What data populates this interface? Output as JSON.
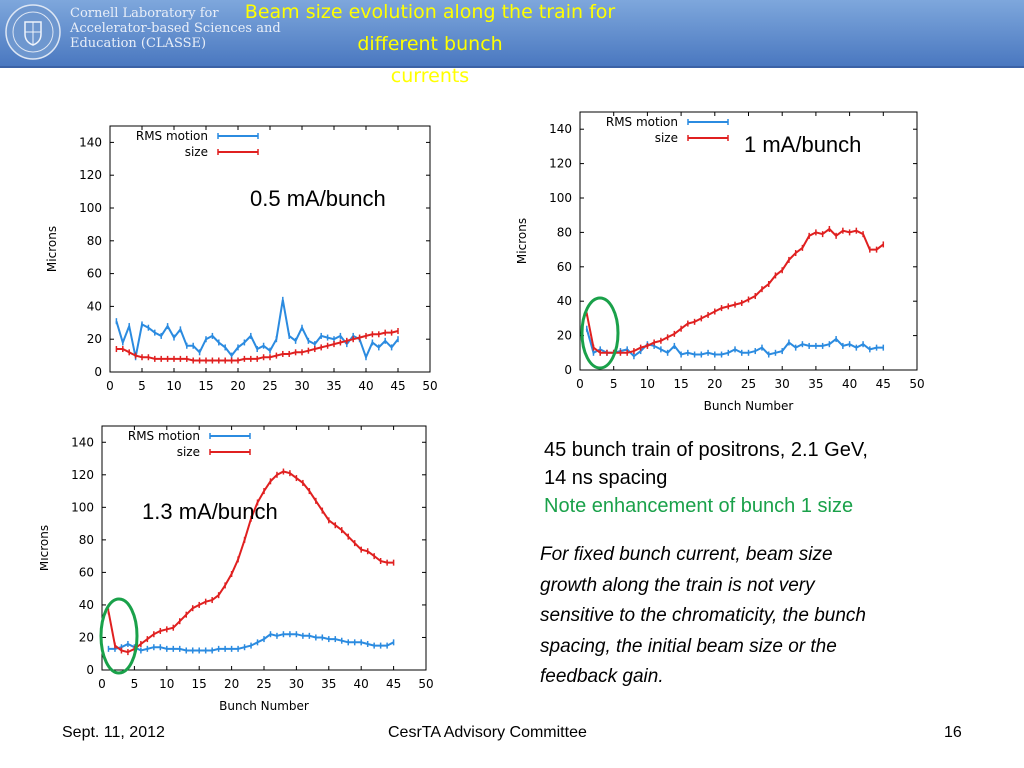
{
  "header": {
    "lab_name_lines": [
      "Cornell Laboratory for",
      "Accelerator-based Sciences and",
      "Education (CLASSE)"
    ],
    "title_lines": [
      "Beam size evolution along the train for different bunch",
      "currents"
    ],
    "bg_color": "#5b87cc",
    "title_color": "#ffff00"
  },
  "chart_data": [
    {
      "type": "line",
      "xlabel": "",
      "ylabel": "Microns",
      "xlim": [
        0,
        50
      ],
      "ylim": [
        0,
        150
      ],
      "xticks": [
        "0",
        "5",
        "10",
        "15",
        "20",
        "25",
        "30",
        "35",
        "40",
        "45",
        "50"
      ],
      "yticks": [
        "0",
        "20",
        "40",
        "60",
        "80",
        "100",
        "120",
        "140"
      ],
      "grid": false,
      "legend_position": "top-left",
      "series": [
        {
          "name": "RMS motion",
          "color": "#2b8be0",
          "x": [
            1,
            2,
            3,
            4,
            5,
            6,
            7,
            8,
            9,
            10,
            11,
            12,
            13,
            14,
            15,
            16,
            17,
            18,
            19,
            20,
            21,
            22,
            23,
            24,
            25,
            26,
            27,
            28,
            29,
            30,
            31,
            32,
            33,
            34,
            35,
            36,
            37,
            38,
            39,
            40,
            41,
            42,
            43,
            44,
            45
          ],
          "y": [
            31,
            18,
            28,
            9,
            29,
            27,
            24,
            22,
            28,
            21,
            26,
            16,
            16,
            12,
            20,
            22,
            18,
            15,
            10,
            15,
            18,
            22,
            14,
            16,
            13,
            20,
            44,
            22,
            19,
            27,
            19,
            17,
            22,
            21,
            20,
            22,
            17,
            22,
            20,
            9,
            18,
            15,
            19,
            15,
            20
          ]
        },
        {
          "name": "size",
          "color": "#e02020",
          "x": [
            1,
            2,
            3,
            4,
            5,
            6,
            7,
            8,
            9,
            10,
            11,
            12,
            13,
            14,
            15,
            16,
            17,
            18,
            19,
            20,
            21,
            22,
            23,
            24,
            25,
            26,
            27,
            28,
            29,
            30,
            31,
            32,
            33,
            34,
            35,
            36,
            37,
            38,
            39,
            40,
            41,
            42,
            43,
            44,
            45
          ],
          "y": [
            14,
            14,
            12,
            10,
            9,
            9,
            8,
            8,
            8,
            8,
            8,
            8,
            7,
            7,
            7,
            7,
            7,
            7,
            7,
            7,
            8,
            8,
            8,
            9,
            9,
            10,
            11,
            11,
            12,
            12,
            13,
            14,
            15,
            16,
            17,
            18,
            19,
            20,
            21,
            22,
            23,
            23,
            24,
            24,
            25
          ]
        }
      ]
    },
    {
      "type": "line",
      "xlabel": "Bunch Number",
      "ylabel": "Microns",
      "xlim": [
        0,
        50
      ],
      "ylim": [
        0,
        150
      ],
      "xticks": [
        "0",
        "5",
        "10",
        "15",
        "20",
        "25",
        "30",
        "35",
        "40",
        "45",
        "50"
      ],
      "yticks": [
        "0",
        "20",
        "40",
        "60",
        "80",
        "100",
        "120",
        "140"
      ],
      "grid": false,
      "legend_position": "top-left",
      "series": [
        {
          "name": "RMS motion",
          "color": "#2b8be0",
          "x": [
            1,
            2,
            3,
            4,
            5,
            6,
            7,
            8,
            9,
            10,
            11,
            12,
            13,
            14,
            15,
            16,
            17,
            18,
            19,
            20,
            21,
            22,
            23,
            24,
            25,
            26,
            27,
            28,
            29,
            30,
            31,
            32,
            33,
            34,
            35,
            36,
            37,
            38,
            39,
            40,
            41,
            42,
            43,
            44,
            45
          ],
          "y": [
            24,
            10,
            12,
            10,
            10,
            11,
            12,
            8,
            11,
            15,
            14,
            12,
            10,
            14,
            9,
            10,
            9,
            9,
            10,
            9,
            9,
            10,
            12,
            10,
            10,
            11,
            13,
            9,
            10,
            11,
            16,
            13,
            15,
            14,
            14,
            14,
            15,
            18,
            14,
            15,
            13,
            15,
            12,
            13,
            13
          ]
        },
        {
          "name": "size",
          "color": "#e02020",
          "x": [
            1,
            2,
            3,
            4,
            5,
            6,
            7,
            8,
            9,
            10,
            11,
            12,
            13,
            14,
            15,
            16,
            17,
            18,
            19,
            20,
            21,
            22,
            23,
            24,
            25,
            26,
            27,
            28,
            29,
            30,
            31,
            32,
            33,
            34,
            35,
            36,
            37,
            38,
            39,
            40,
            41,
            42,
            43,
            44,
            45
          ],
          "y": [
            33,
            13,
            10,
            10,
            10,
            10,
            10,
            11,
            13,
            14,
            16,
            17,
            19,
            21,
            24,
            27,
            28,
            30,
            32,
            34,
            36,
            37,
            38,
            39,
            41,
            43,
            47,
            50,
            55,
            58,
            64,
            68,
            71,
            78,
            80,
            79,
            82,
            78,
            81,
            80,
            81,
            79,
            70,
            70,
            73
          ]
        }
      ]
    },
    {
      "type": "line",
      "xlabel": "Bunch Number",
      "ylabel": "Microns",
      "xlim": [
        0,
        50
      ],
      "ylim": [
        0,
        150
      ],
      "xticks": [
        "0",
        "5",
        "10",
        "15",
        "20",
        "25",
        "30",
        "35",
        "40",
        "45",
        "50"
      ],
      "yticks": [
        "0",
        "20",
        "40",
        "60",
        "80",
        "100",
        "120",
        "140"
      ],
      "grid": false,
      "legend_position": "top-left",
      "series": [
        {
          "name": "RMS motion",
          "color": "#2b8be0",
          "x": [
            1,
            2,
            3,
            4,
            5,
            6,
            7,
            8,
            9,
            10,
            11,
            12,
            13,
            14,
            15,
            16,
            17,
            18,
            19,
            20,
            21,
            22,
            23,
            24,
            25,
            26,
            27,
            28,
            29,
            30,
            31,
            32,
            33,
            34,
            35,
            36,
            37,
            38,
            39,
            40,
            41,
            42,
            43,
            44,
            45
          ],
          "y": [
            13,
            13,
            14,
            16,
            14,
            12,
            13,
            14,
            14,
            13,
            13,
            13,
            12,
            12,
            12,
            12,
            12,
            13,
            13,
            13,
            13,
            14,
            15,
            17,
            19,
            22,
            21,
            22,
            22,
            22,
            21,
            21,
            20,
            20,
            19,
            19,
            18,
            17,
            17,
            17,
            16,
            15,
            15,
            15,
            17
          ]
        },
        {
          "name": "size",
          "color": "#e02020",
          "x": [
            1,
            2,
            3,
            4,
            5,
            6,
            7,
            8,
            9,
            10,
            11,
            12,
            13,
            14,
            15,
            16,
            17,
            18,
            19,
            20,
            21,
            22,
            23,
            24,
            25,
            26,
            27,
            28,
            29,
            30,
            31,
            32,
            33,
            34,
            35,
            36,
            37,
            38,
            39,
            40,
            41,
            42,
            43,
            44,
            45
          ],
          "y": [
            36,
            15,
            12,
            11,
            13,
            16,
            19,
            22,
            24,
            25,
            26,
            30,
            34,
            38,
            40,
            42,
            43,
            46,
            52,
            59,
            68,
            80,
            93,
            103,
            110,
            116,
            120,
            122,
            121,
            118,
            115,
            110,
            104,
            98,
            92,
            89,
            86,
            82,
            78,
            74,
            73,
            70,
            67,
            66,
            66
          ]
        }
      ]
    }
  ],
  "chart_labels": [
    "0.5 mA/bunch",
    "1 mA/bunch",
    "1.3 mA/bunch"
  ],
  "notes": {
    "line1": "45 bunch train of positrons, 2.1 GeV,",
    "line2": "14 ns spacing",
    "line3": "Note enhancement of bunch 1 size",
    "line3_color": "#1aa14a",
    "italic_lines": [
      "For fixed bunch current, beam size",
      "growth along the train is not very",
      "sensitive to the chromaticity, the bunch",
      "spacing, the initial beam size or the",
      "feedback gain."
    ]
  },
  "footer": {
    "date": "Sept. 11, 2012",
    "center": "CesrTA Advisory Committee",
    "page": "16"
  }
}
